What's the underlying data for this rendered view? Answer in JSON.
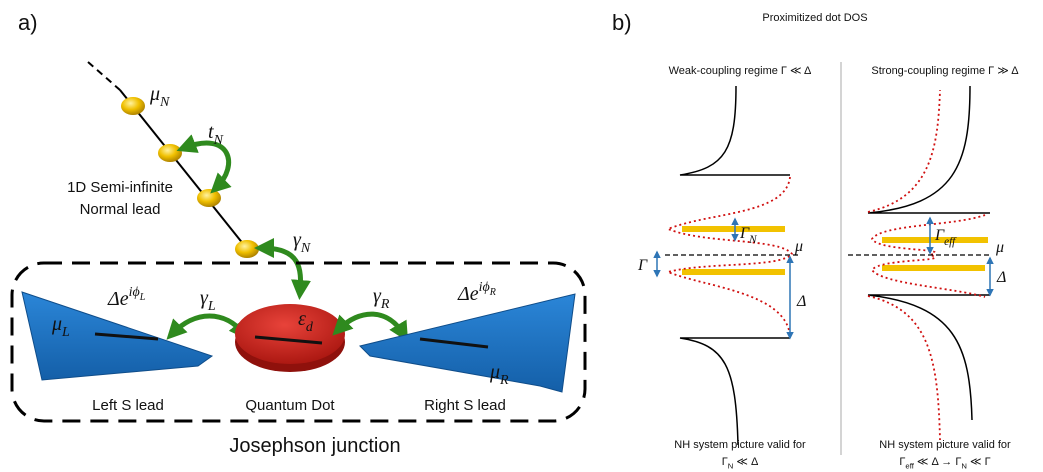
{
  "panel_a": {
    "label": "a)",
    "mu_n": [
      {
        "text": "μ"
      },
      {
        "sub": "N"
      }
    ],
    "t_n": [
      {
        "text": "t"
      },
      {
        "sub": "N"
      }
    ],
    "normal_lead": [
      "1D Semi-infinite",
      "Normal lead"
    ],
    "gamma_n": [
      {
        "text": "γ"
      },
      {
        "sub": "N"
      }
    ],
    "delta_l": [
      {
        "text": "Δe"
      },
      {
        "sup": "iϕ"
      },
      {
        "supsub": "L"
      }
    ],
    "gamma_l": [
      {
        "text": "γ"
      },
      {
        "sub": "L"
      }
    ],
    "dot_energy": [
      {
        "text": "ε"
      },
      {
        "sub": "d"
      }
    ],
    "gamma_r": [
      {
        "text": "γ"
      },
      {
        "sub": "R"
      }
    ],
    "delta_r": [
      {
        "text": "Δe"
      },
      {
        "sup": "iϕ"
      },
      {
        "supsub": "R"
      }
    ],
    "mu_l": [
      {
        "text": "μ"
      },
      {
        "sub": "L"
      }
    ],
    "mu_r": [
      {
        "text": "μ"
      },
      {
        "sub": "R"
      }
    ],
    "left_lead": "Left S lead",
    "dot": "Quantum Dot",
    "right_lead": "Right S lead",
    "junction": "Josephson junction"
  },
  "panel_b": {
    "label": "b)",
    "title": "Proximitized dot DOS",
    "weak": {
      "heading": "Weak-coupling regime Γ ≪ Δ",
      "gamma_n": [
        {
          "text": "Γ"
        },
        {
          "sub": "N"
        }
      ],
      "gamma": "Γ",
      "mu": "μ",
      "delta": "Δ",
      "validity": "NH system picture valid for",
      "condition": [
        {
          "text": "Γ"
        },
        {
          "sub": "N"
        },
        {
          "text": " ≪ Δ"
        }
      ]
    },
    "strong": {
      "heading": "Strong-coupling regime Γ ≫ Δ",
      "gamma_eff": [
        {
          "text": "Γ"
        },
        {
          "sub": "eff"
        }
      ],
      "mu": "μ",
      "delta": "Δ",
      "validity": "NH system picture valid for",
      "condition": [
        {
          "text": "Γ"
        },
        {
          "sub": "eff"
        },
        {
          "text": " ≪ Δ → Γ"
        },
        {
          "sub": "N"
        },
        {
          "text": " ≪ Γ"
        }
      ]
    }
  }
}
